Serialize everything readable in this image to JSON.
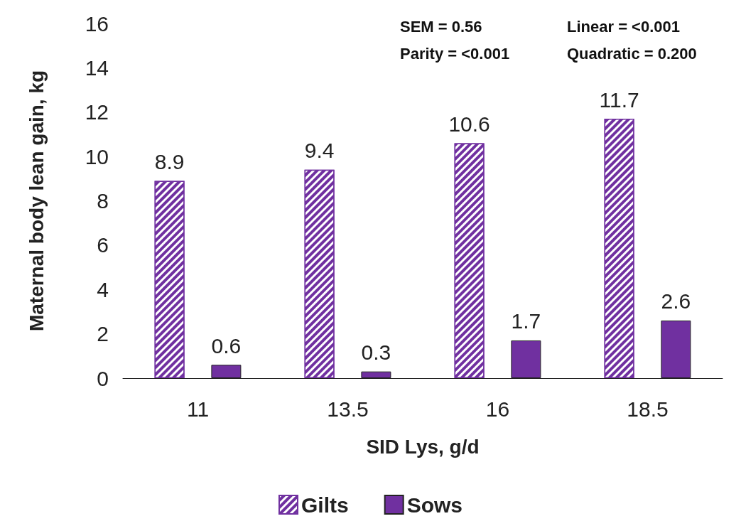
{
  "chart_data": {
    "type": "bar",
    "xlabel": "SID Lys, g/d",
    "ylabel": "Maternal body lean gain, kg",
    "categories": [
      "11",
      "13.5",
      "16",
      "18.5"
    ],
    "series": [
      {
        "name": "Gilts",
        "color": "#7030a0",
        "values": [
          8.9,
          9.4,
          10.6,
          11.7
        ]
      },
      {
        "name": "Sows",
        "color": "#7030a0",
        "values": [
          0.6,
          0.3,
          1.7,
          2.6
        ]
      }
    ],
    "ylim": [
      0,
      16
    ],
    "yticks": [
      0,
      2,
      4,
      6,
      8,
      10,
      12,
      14,
      16
    ],
    "grid": false,
    "legend": "bottom",
    "data_labels": true,
    "annotations": [
      "SEM = 0.56",
      "Parity = <0.001",
      "Linear = <0.001",
      "Quadratic = 0.200"
    ]
  }
}
